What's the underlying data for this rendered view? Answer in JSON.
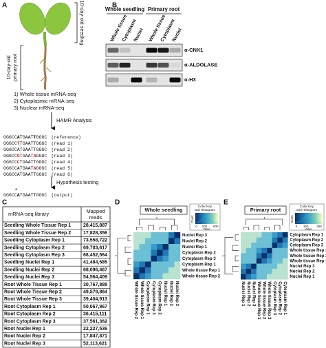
{
  "panel_labels": [
    "A",
    "B",
    "C",
    "D",
    "E"
  ],
  "panel_a": {
    "seedling_label": "10-day-old seedling",
    "root_label": [
      "10-day-old",
      "primary root"
    ],
    "libraries": [
      "1) Whole tissue mRNA-seq",
      "2) Cytoplasmic mRNA-seq",
      "3) Nuclear mRNA-seq"
    ],
    "analysis_step": "HAMR Analysis",
    "alignment": [
      {
        "seq": [
          "GGGCC",
          "A",
          "TGAAT",
          "T",
          "GGGC"
        ],
        "label": "(reference)"
      },
      {
        "seq": [
          "GGGCC",
          "T",
          "TGAATTGGGC"
        ],
        "label": "(read 1)"
      },
      {
        "seq": [
          "GGGCCATGAATTGGGC"
        ],
        "label": "(read 2)"
      },
      {
        "seq": [
          "GGGCC",
          "G",
          "TGAAT",
          "A",
          "GGGC"
        ],
        "label": "(read 3)"
      },
      {
        "seq": [
          "GGGCC",
          "C",
          "TGAATTGGGC"
        ],
        "label": "(read 4)"
      },
      {
        "seq": [
          "GGGCCATGAAT",
          "A",
          "GGGC"
        ],
        "label": "(read 5)"
      },
      {
        "seq": [
          "GGGCCATGAATTGGGC"
        ],
        "label": "(read 6)"
      }
    ],
    "test_step": "Hypothesis testing",
    "output": {
      "mark": "*",
      "seq": [
        "GGGCC",
        "A",
        "TGAATTGGGC"
      ],
      "label": "(output)"
    }
  },
  "panel_b": {
    "groups": [
      "Whole seedling",
      "Primary root"
    ],
    "lanes": [
      [
        "Whole tissue",
        "Cytoplasm",
        "Nuclei"
      ],
      [
        "Whole tissue",
        "Cytoplasm",
        "Nuclei"
      ]
    ],
    "antibodies": [
      "α-CNX1",
      "α-ALDOLASE",
      "α-H3"
    ]
  },
  "panel_c": {
    "header_library": "mRNA-seq library",
    "header_reads": [
      "Mapped",
      "reads"
    ],
    "rows": [
      [
        "Seedling Whole Tissue Rep 1",
        "28,415,887"
      ],
      [
        "Seedling Whole Tissue Rep 2",
        "17,828,356"
      ],
      [
        "Seedling Cytoplasm Rep 1",
        "73,558,722"
      ],
      [
        "Seedling Cytoplasm Rep 2",
        "69,703,617"
      ],
      [
        "Seedling Cytoplasm Rep 3",
        "68,452,564"
      ],
      [
        "Seedling Nuclei Rep 1",
        "41,484,585"
      ],
      [
        "Seedling Nuclei Rep 2",
        "68,096,467"
      ],
      [
        "Seedling Nuclei Rep 3",
        "54,564,409"
      ],
      [
        "Root Whole Tissue Rep 1",
        "30,767,888"
      ],
      [
        "Root Whole Tissue Rep 2",
        "49,579,864"
      ],
      [
        "Root Whole Tissue Rep 3",
        "39,404,913"
      ],
      [
        "Root Cytoplasm Rep 1",
        "50,067,867"
      ],
      [
        "Root Cytoplasm Rep 2",
        "36,415,111"
      ],
      [
        "Root Cytoplasm Rep 3",
        "37,561,362"
      ],
      [
        "Root Nuclei Rep 1",
        "22,227,536"
      ],
      [
        "Root Nuclei Rep 2",
        "17,847,871"
      ],
      [
        "Root Nuclei Rep 3",
        "52,113,621"
      ]
    ]
  },
  "panel_d": {
    "title": "Whole seedling",
    "key_title": [
      "Color Key",
      "and Histogram"
    ],
    "key_ylabel": "Count",
    "key_xlabel": "Value",
    "key_ticks": [
      "0",
      "200",
      "600"
    ],
    "rows": [
      "Nuclei Rep 3",
      "Nuclei Rep 2",
      "Nuclei Rep 1",
      "Cytoplasm Rep 2",
      "Cytoplasm Rep 3",
      "Cytoplasm Rep 1",
      "Whole tissue Rep 1",
      "Whole tissue Rep 2"
    ],
    "columns": [
      "Whole tissue Rep 2",
      "Whole tissue Rep 1",
      "Cytoplasm Rep 1",
      "Cytoplasm Rep 3",
      "Cytoplasm Rep 2",
      "Nuclei Rep 1",
      "Nuclei Rep 2",
      "Nuclei Rep 3"
    ]
  },
  "panel_e": {
    "title": "Primary root",
    "key_title": [
      "Color Key",
      "and Histogram"
    ],
    "key_ylabel": "Count",
    "key_xlabel": "Value",
    "key_ticks": [
      "0",
      "150",
      "250"
    ],
    "rows": [
      "Cytoplasm Rep 1",
      "Cytoplasm Rep 2",
      "Cytoplasm Rep 3",
      "Whole tissue Rep 3",
      "Whole tissue Rep 2",
      "Whole tissue Rep 1",
      "Nuclei Rep 3",
      "Nuclei Rep 2",
      "Nuclei Rep 1"
    ],
    "columns": [
      "Nuclei Rep 1",
      "Nuclei Rep 2",
      "Nuclei Rep 3",
      "Whole tissue Rep 1",
      "Whole tissue Rep 2",
      "Whole tissue Rep 3",
      "Cytoplasm Rep 3",
      "Cytoplasm Rep 2",
      "Cytoplasm Rep 1"
    ]
  }
}
